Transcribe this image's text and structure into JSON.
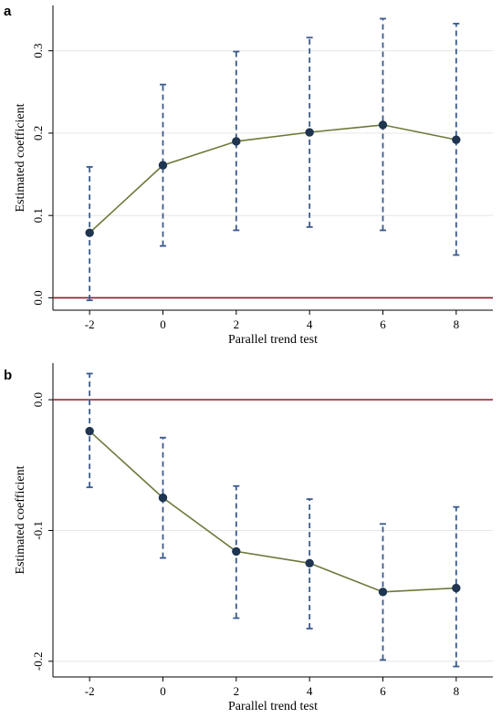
{
  "colors": {
    "reference_line": "#8b1a2b",
    "ci": "#3b5a8c",
    "series_line": "#6b7a3a",
    "point": "#1f3550",
    "grid": "#e6e6e6"
  },
  "chart_data": [
    {
      "panel_label": "a",
      "type": "line",
      "xlabel": "Parallel trend test",
      "ylabel": "Estimated coefficient",
      "xlim": [
        -3,
        9
      ],
      "ylim": [
        -0.015,
        0.355
      ],
      "x_ticks": [
        -2,
        0,
        2,
        4,
        6,
        8
      ],
      "x_tick_labels": [
        "-2",
        "0",
        "2",
        "4",
        "6",
        "8"
      ],
      "y_ticks": [
        0.0,
        0.1,
        0.2,
        0.3
      ],
      "y_tick_labels": [
        "0.0",
        "0.1",
        "0.2",
        "0.3"
      ],
      "reference_y": 0,
      "grid": true,
      "x": [
        -2,
        0,
        2,
        4,
        6,
        8
      ],
      "values": [
        0.079,
        0.161,
        0.19,
        0.201,
        0.21,
        0.192
      ],
      "ci_lower": [
        -0.003,
        0.063,
        0.082,
        0.086,
        0.082,
        0.052
      ],
      "ci_upper": [
        0.159,
        0.259,
        0.299,
        0.316,
        0.339,
        0.333
      ]
    },
    {
      "panel_label": "b",
      "type": "line",
      "xlabel": "Parallel trend test",
      "ylabel": "Estimated coefficient",
      "xlim": [
        -3,
        9
      ],
      "ylim": [
        -0.212,
        0.028
      ],
      "x_ticks": [
        -2,
        0,
        2,
        4,
        6,
        8
      ],
      "x_tick_labels": [
        "-2",
        "0",
        "2",
        "4",
        "6",
        "8"
      ],
      "y_ticks": [
        0.0,
        -0.1,
        -0.2
      ],
      "y_tick_labels": [
        "0.0",
        "-0.1",
        "-0.2"
      ],
      "reference_y": 0,
      "grid": true,
      "x": [
        -2,
        0,
        2,
        4,
        6,
        8
      ],
      "values": [
        -0.024,
        -0.075,
        -0.116,
        -0.125,
        -0.147,
        -0.144
      ],
      "ci_lower": [
        -0.067,
        -0.121,
        -0.167,
        -0.175,
        -0.199,
        -0.204
      ],
      "ci_upper": [
        0.02,
        -0.029,
        -0.066,
        -0.076,
        -0.095,
        -0.082
      ]
    }
  ]
}
